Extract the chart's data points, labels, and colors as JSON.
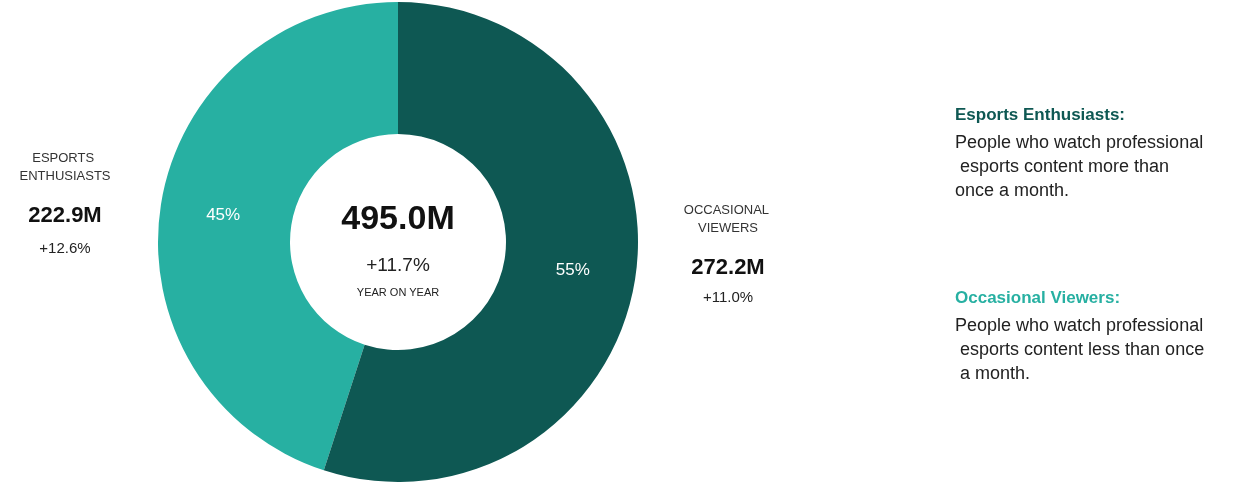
{
  "chart_data": {
    "type": "donut",
    "categories": [
      "ESPORTS ENTHUSIASTS",
      "OCCASIONAL VIEWERS"
    ],
    "values": [
      45,
      55
    ],
    "colors": [
      "#27b0a2",
      "#0e5853"
    ],
    "value_labels": [
      "45%",
      "55%"
    ],
    "annotations": [
      "222.9M",
      "+12.6%",
      "272.2M",
      "+11.0%",
      "495.0M",
      "+11.7%",
      "YEAR ON YEAR",
      "Esports Enthusiasts:",
      "People who watch professional esports content more than once a month.",
      "Occasional Viewers:",
      "People who watch professional esports content less than once a month."
    ],
    "legend": false
  }
}
